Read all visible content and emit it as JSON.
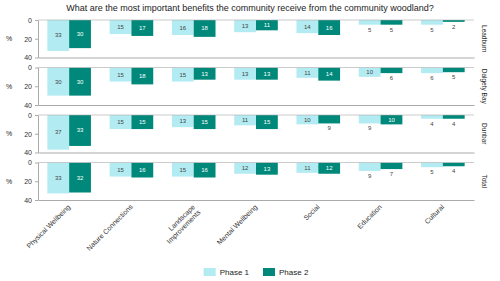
{
  "title": "What are the most important benefits the community receive from the community woodland?",
  "chart_data": [
    {
      "type": "bar",
      "title": "Leadburn",
      "categories": [
        "Physical Wellbeing",
        "Nature Connections",
        "Landscape\nImprovements",
        "Mental Wellbeing",
        "Social",
        "Education",
        "Cultural"
      ],
      "series": [
        {
          "name": "Phase 1",
          "color": "#b2ebf2",
          "values": [
            33,
            15,
            16,
            13,
            14,
            5,
            5
          ]
        },
        {
          "name": "Phase 2",
          "color": "#00897b",
          "values": [
            30,
            17,
            18,
            11,
            16,
            5,
            2
          ]
        }
      ],
      "ylabel": "%",
      "ylim": [
        40,
        0
      ],
      "yticks": [
        0,
        20,
        40
      ],
      "grid": false,
      "data_labels": true,
      "tick_labels": "y"
    },
    {
      "type": "bar",
      "title": "Dalgety Bay",
      "categories": [
        "Physical Wellbeing",
        "Nature Connections",
        "Landscape\nImprovements",
        "Mental Wellbeing",
        "Social",
        "Education",
        "Cultural"
      ],
      "series": [
        {
          "name": "Phase 1",
          "color": "#b2ebf2",
          "values": [
            30,
            15,
            15,
            13,
            11,
            10,
            6
          ]
        },
        {
          "name": "Phase 2",
          "color": "#00897b",
          "values": [
            30,
            18,
            13,
            13,
            14,
            6,
            5
          ]
        }
      ],
      "ylabel": "%",
      "ylim": [
        40,
        0
      ],
      "yticks": [
        0,
        20,
        40
      ],
      "grid": false,
      "data_labels": true,
      "tick_labels": "y"
    },
    {
      "type": "bar",
      "title": "Dunbar",
      "categories": [
        "Physical Wellbeing",
        "Nature Connections",
        "Landscape\nImprovements",
        "Mental Wellbeing",
        "Social",
        "Education",
        "Cultural"
      ],
      "series": [
        {
          "name": "Phase 1",
          "color": "#b2ebf2",
          "values": [
            37,
            15,
            13,
            11,
            10,
            9,
            4
          ]
        },
        {
          "name": "Phase 2",
          "color": "#00897b",
          "values": [
            33,
            15,
            15,
            15,
            9,
            10,
            4
          ]
        }
      ],
      "ylabel": "%",
      "ylim": [
        40,
        0
      ],
      "yticks": [
        0,
        20,
        40
      ],
      "grid": false,
      "data_labels": true,
      "tick_labels": "y"
    },
    {
      "type": "bar",
      "title": "Total",
      "categories": [
        "Physical Wellbeing",
        "Nature Connections",
        "Landscape\nImprovements",
        "Mental Wellbeing",
        "Social",
        "Education",
        "Cultural"
      ],
      "series": [
        {
          "name": "Phase 1",
          "color": "#b2ebf2",
          "values": [
            33,
            15,
            15,
            12,
            11,
            9,
            5
          ]
        },
        {
          "name": "Phase 2",
          "color": "#00897b",
          "values": [
            32,
            16,
            16,
            13,
            12,
            7,
            4
          ]
        }
      ],
      "ylabel": "%",
      "ylim": [
        40,
        0
      ],
      "yticks": [
        0,
        20,
        40
      ],
      "grid": false,
      "data_labels": true,
      "legend": "bottom"
    }
  ]
}
